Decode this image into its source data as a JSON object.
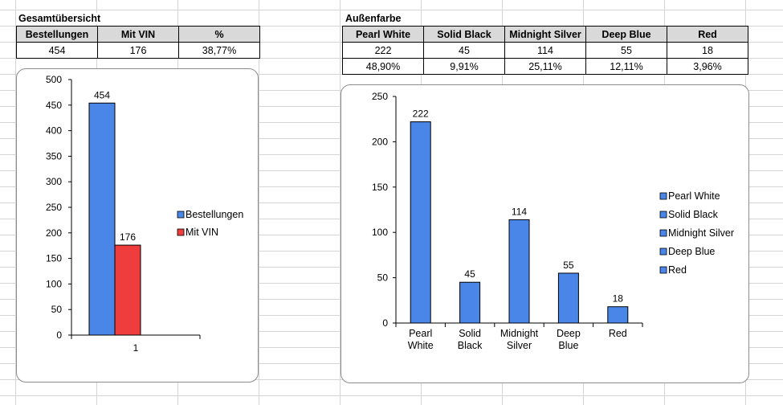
{
  "summary": {
    "title": "Gesamtübersicht",
    "headers": [
      "Bestellungen",
      "Mit VIN",
      "%"
    ],
    "row": [
      "454",
      "176",
      "38,77%"
    ]
  },
  "colors_section": {
    "title": "Außenfarbe",
    "headers": [
      "Pearl White",
      "Solid Black",
      "Midnight Silver",
      "Deep Blue",
      "Red"
    ],
    "counts": [
      "222",
      "45",
      "114",
      "55",
      "18"
    ],
    "percents": [
      "48,90%",
      "9,91%",
      "25,11%",
      "12,11%",
      "3,96%"
    ]
  },
  "chart_data": [
    {
      "type": "bar",
      "categories": [
        "1"
      ],
      "series": [
        {
          "name": "Bestellungen",
          "values": [
            454
          ],
          "color": "#4a86e8"
        },
        {
          "name": "Mit VIN",
          "values": [
            176
          ],
          "color": "#ef3c3c"
        }
      ],
      "data_labels": [
        "454",
        "176"
      ],
      "ylim": [
        0,
        500
      ],
      "yticks": [
        0,
        50,
        100,
        150,
        200,
        250,
        300,
        350,
        400,
        450,
        500
      ],
      "legend": "right",
      "grid": false
    },
    {
      "type": "bar",
      "categories": [
        [
          "Pearl",
          "White"
        ],
        [
          "Solid",
          "Black"
        ],
        [
          "Midnight",
          "Silver"
        ],
        [
          "Deep",
          "Blue"
        ],
        [
          "Red"
        ]
      ],
      "values": [
        222,
        45,
        114,
        55,
        18
      ],
      "data_labels": [
        "222",
        "45",
        "114",
        "55",
        "18"
      ],
      "color": "#4a86e8",
      "ylim": [
        0,
        250
      ],
      "yticks": [
        0,
        50,
        100,
        150,
        200,
        250
      ],
      "legend": "right",
      "legend_entries": [
        "Pearl White",
        "Solid Black",
        "Midnight Silver",
        "Deep Blue",
        "Red"
      ],
      "grid": false
    }
  ]
}
